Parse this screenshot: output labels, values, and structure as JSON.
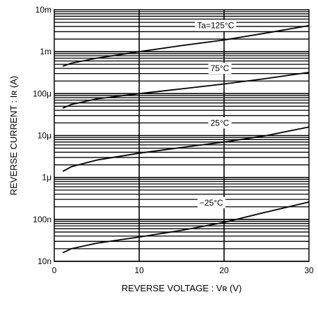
{
  "chart_data": {
    "type": "line",
    "xlabel": "REVERSE VOLTAGE : Vʀ (V)",
    "ylabel": "REVERSE CURRENT : Iʀ (A)",
    "xlim": [
      0,
      30
    ],
    "ylim": [
      1e-08,
      0.01
    ],
    "yscale": "log",
    "grid": true,
    "x_ticks": [
      0,
      10,
      20,
      30
    ],
    "x_tick_labels": [
      "0",
      "10",
      "20",
      "30"
    ],
    "y_ticks": [
      1e-08,
      1e-07,
      1e-06,
      1e-05,
      0.0001,
      0.001,
      0.01
    ],
    "y_tick_labels": [
      "10n",
      "100n",
      "1μ",
      "10μ",
      "100μ",
      "1m",
      "10m"
    ],
    "series": [
      {
        "name": "Ta=125°C",
        "x": [
          1,
          2,
          5,
          10,
          15,
          20,
          25,
          30
        ],
        "y": [
          0.00045,
          0.00053,
          0.0007,
          0.001,
          0.0014,
          0.0019,
          0.0028,
          0.0042
        ]
      },
      {
        "name": "75°C",
        "x": [
          1,
          2,
          5,
          10,
          15,
          20,
          25,
          30
        ],
        "y": [
          4.5e-05,
          5.5e-05,
          7.5e-05,
          0.0001,
          0.00013,
          0.00017,
          0.00023,
          0.00032
        ]
      },
      {
        "name": "25°C",
        "x": [
          1,
          2,
          5,
          10,
          15,
          20,
          25,
          30
        ],
        "y": [
          1.4e-06,
          1.8e-06,
          2.6e-06,
          3.8e-06,
          5.2e-06,
          7e-06,
          1e-05,
          1.6e-05
        ]
      },
      {
        "name": "−25°C",
        "x": [
          1,
          2,
          5,
          10,
          15,
          20,
          25,
          30
        ],
        "y": [
          1.6e-08,
          2e-08,
          2.7e-08,
          3.8e-08,
          5.5e-08,
          8.5e-08,
          1.5e-07,
          2.6e-07
        ]
      }
    ],
    "annotations": [
      {
        "text": "Ta=125°C",
        "x": 19,
        "y": 0.0042
      },
      {
        "text": "75°C",
        "x": 19.5,
        "y": 0.0004
      },
      {
        "text": "25°C",
        "x": 19.5,
        "y": 2e-05
      },
      {
        "text": "−25°C",
        "x": 18.5,
        "y": 2.5e-07
      }
    ]
  }
}
